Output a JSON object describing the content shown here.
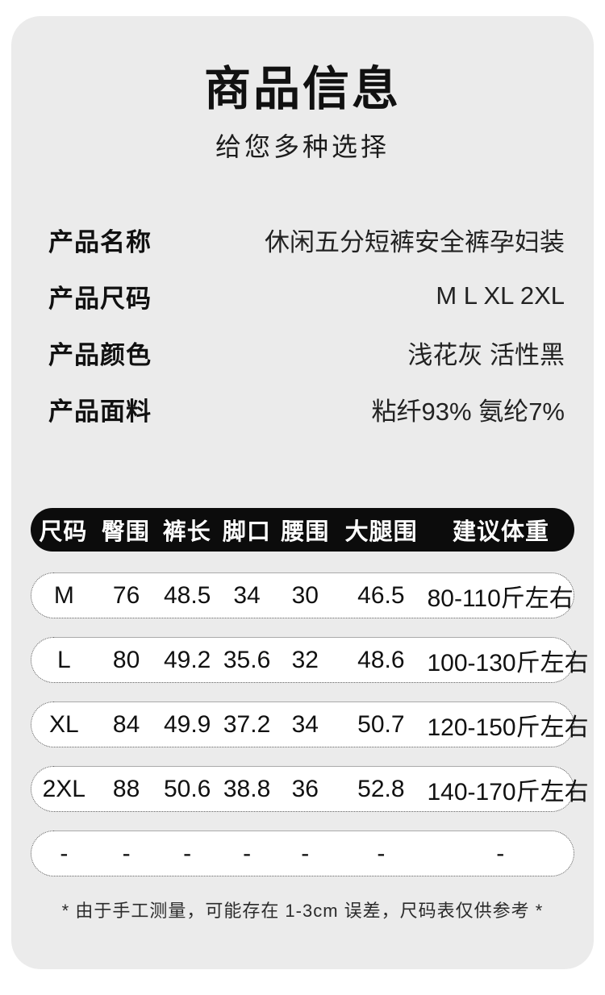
{
  "header": {
    "title": "商品信息",
    "subtitle": "给您多种选择"
  },
  "product_info": {
    "rows": [
      {
        "label": "产品名称",
        "value": "休闲五分短裤安全裤孕妇装"
      },
      {
        "label": "产品尺码",
        "value": "M L XL 2XL"
      },
      {
        "label": "产品颜色",
        "value": "浅花灰 活性黑"
      },
      {
        "label": "产品面料",
        "value": "粘纤93% 氨纶7%"
      }
    ]
  },
  "size_chart": {
    "type": "table",
    "headers": [
      "尺码",
      "臀围",
      "裤长",
      "脚口",
      "腰围",
      "大腿围",
      "建议体重"
    ],
    "rows": [
      [
        "M",
        "76",
        "48.5",
        "34",
        "30",
        "46.5",
        "80-110斤左右"
      ],
      [
        "L",
        "80",
        "49.2",
        "35.6",
        "32",
        "48.6",
        "100-130斤左右"
      ],
      [
        "XL",
        "84",
        "49.9",
        "37.2",
        "34",
        "50.7",
        "120-150斤左右"
      ],
      [
        "2XL",
        "88",
        "50.6",
        "38.8",
        "36",
        "52.8",
        "140-170斤左右"
      ],
      [
        "-",
        "-",
        "-",
        "-",
        "-",
        "-",
        "-"
      ]
    ]
  },
  "footnote": "* 由于手工测量，可能存在 1-3cm 误差，尺码表仅供参考 *",
  "colors": {
    "page_bg": "#ffffff",
    "card_bg": "#ebebeb",
    "header_pill_bg": "#0c0c0c",
    "header_pill_text": "#ffffff",
    "row_pill_bg": "#ffffff",
    "row_pill_border": "#555555",
    "text": "#111111"
  }
}
